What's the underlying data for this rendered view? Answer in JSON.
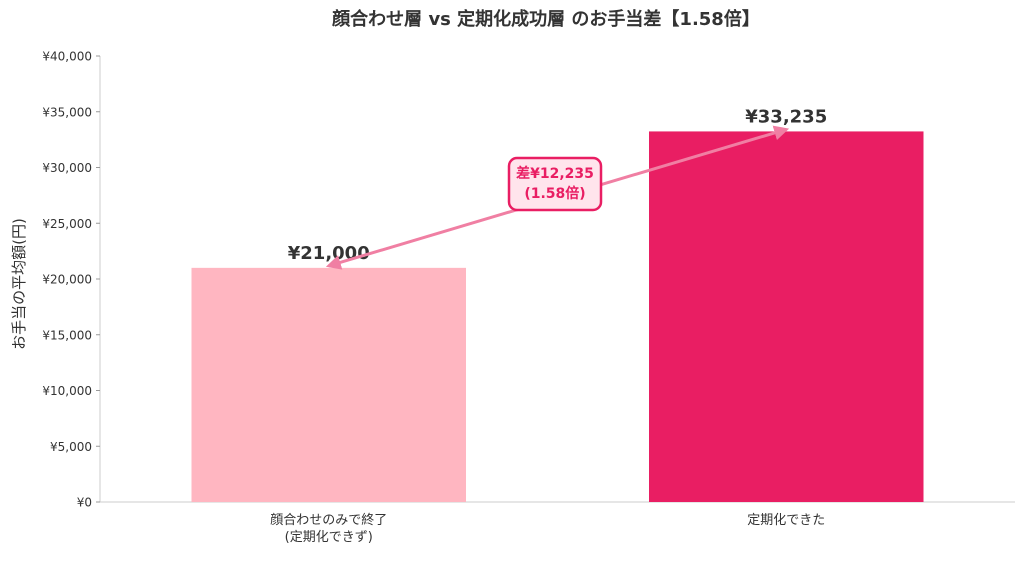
{
  "chart_data": {
    "type": "bar",
    "title": "顔合わせ層 vs 定期化成功層 のお手当差【1.58倍】",
    "ylabel": "お手当の平均額(円)",
    "xlabel": "",
    "ylim": [
      0,
      40000
    ],
    "yticks": [
      "¥0",
      "¥5,000",
      "¥10,000",
      "¥15,000",
      "¥20,000",
      "¥25,000",
      "¥30,000",
      "¥35,000",
      "¥40,000"
    ],
    "ytick_values": [
      0,
      5000,
      10000,
      15000,
      20000,
      25000,
      30000,
      35000,
      40000
    ],
    "categories": [
      [
        "顔合わせのみで終了",
        "(定期化できず)"
      ],
      [
        "定期化できた"
      ]
    ],
    "values": [
      21000,
      33235
    ],
    "value_labels": [
      "¥21,000",
      "¥33,235"
    ],
    "colors": [
      "#ffb6c1",
      "#e91e63"
    ],
    "arrow_color": "#f07fa3",
    "annotation": {
      "lines": [
        "差¥12,235",
        "(1.58倍)"
      ],
      "text_color": "#e91e63",
      "box_fill": "#ffe4ec",
      "box_stroke": "#e91e63"
    },
    "grid": false
  }
}
